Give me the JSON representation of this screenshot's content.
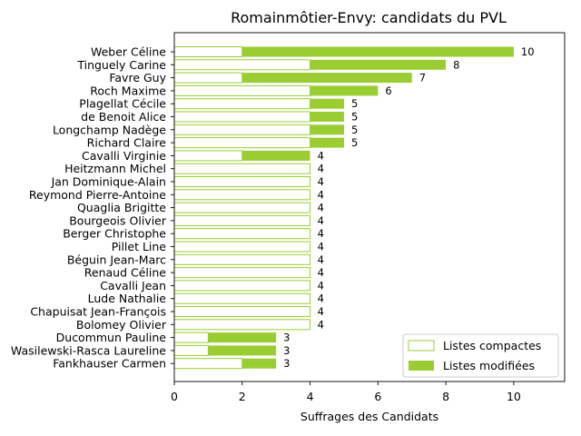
{
  "chart_data": {
    "type": "bar",
    "orientation": "horizontal",
    "stacked": true,
    "title": "Romainmôtier-Envy: candidats du PVL",
    "xlabel": "Suffrages des Candidats",
    "ylabel": "",
    "xlim": [
      0,
      11.5
    ],
    "xticks": [
      0,
      2,
      4,
      6,
      8,
      10
    ],
    "grid": false,
    "legend_position": "bottom-right",
    "colors": {
      "modified": "#9acd32",
      "compact_edge": "#9acd32",
      "compact_fill": "#ffffff"
    },
    "categories": [
      "Weber Céline",
      "Tinguely Carine",
      "Favre Guy",
      "Roch Maxime",
      "Plagellat Cécile",
      "de Benoit Alice",
      "Longchamp Nadège",
      "Richard Claire",
      "Cavalli Virginie",
      "Heitzmann Michel",
      "Jan Dominique-Alain",
      "Reymond Pierre-Antoine",
      "Quaglia Brigitte",
      "Bourgeois Olivier",
      "Berger Christophe",
      "Pillet Line",
      "Béguin Jean-Marc",
      "Renaud Céline",
      "Cavalli Jean",
      "Lude Nathalie",
      "Chapuisat Jean-François",
      "Bolomey Olivier",
      "Ducommun Pauline",
      "Wasilewski-Rasca Laureline",
      "Fankhauser Carmen"
    ],
    "series": [
      {
        "name": "Listes compactes",
        "values": [
          2,
          4,
          2,
          4,
          4,
          4,
          4,
          4,
          2,
          4,
          4,
          4,
          4,
          4,
          4,
          4,
          4,
          4,
          4,
          4,
          4,
          4,
          1,
          1,
          2
        ]
      },
      {
        "name": "Listes modifiées",
        "values": [
          8,
          4,
          5,
          2,
          1,
          1,
          1,
          1,
          2,
          0,
          0,
          0,
          0,
          0,
          0,
          0,
          0,
          0,
          0,
          0,
          0,
          0,
          2,
          2,
          1
        ]
      }
    ],
    "totals": [
      "10",
      "8",
      "7",
      "6",
      "5",
      "5",
      "5",
      "5",
      "4",
      "4",
      "4",
      "4",
      "4",
      "4",
      "4",
      "4",
      "4",
      "4",
      "4",
      "4",
      "4",
      "4",
      "3",
      "3",
      "3"
    ]
  }
}
